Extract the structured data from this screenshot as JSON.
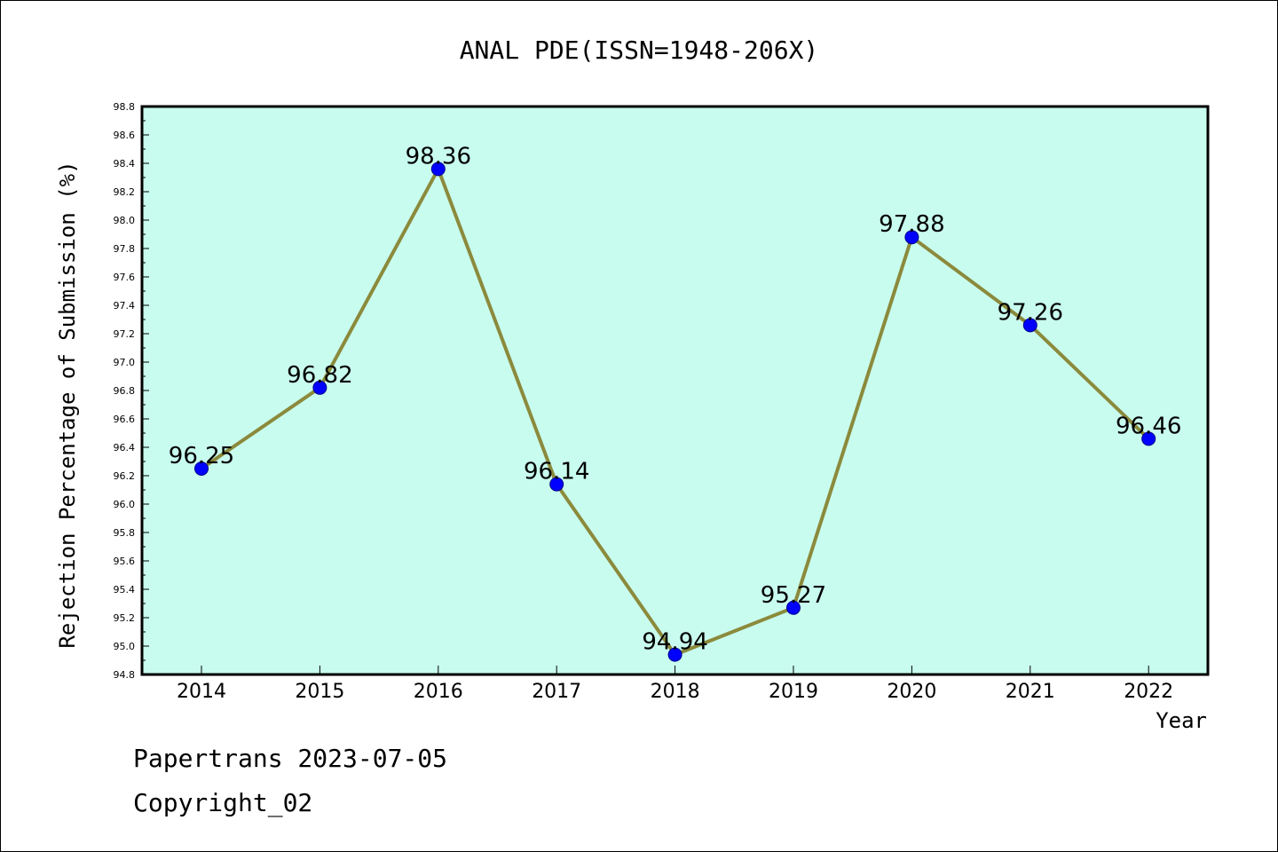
{
  "chart_data": {
    "type": "line",
    "title": "ANAL PDE(ISSN=1948-206X)",
    "xlabel": "Year",
    "ylabel": "Rejection Percentage of Submission (%)",
    "categories": [
      "2014",
      "2015",
      "2016",
      "2017",
      "2018",
      "2019",
      "2020",
      "2021",
      "2022"
    ],
    "series": [
      {
        "values": [
          96.25,
          96.82,
          98.36,
          96.14,
          94.94,
          95.27,
          97.88,
          97.26,
          96.46
        ],
        "labels": [
          "96.25",
          "96.82",
          "98.36",
          "96.14",
          "94.94",
          "95.27",
          "97.88",
          "97.26",
          "96.46"
        ]
      }
    ],
    "ylim": [
      94.8,
      98.8
    ],
    "yticks": [
      "94.8",
      "95.0",
      "95.2",
      "95.4",
      "95.6",
      "95.8",
      "96.0",
      "96.2",
      "96.4",
      "96.6",
      "96.8",
      "97.0",
      "97.2",
      "97.4",
      "97.6",
      "97.8",
      "98.0",
      "98.2",
      "98.4",
      "98.6",
      "98.8"
    ],
    "grid": false,
    "colors": {
      "plot_background": "#c8fcee",
      "line": "#8b8a3c",
      "marker": "#0000ff"
    }
  },
  "footer": {
    "line1": "Papertrans 2023-07-05",
    "line2": "Copyright_02"
  }
}
